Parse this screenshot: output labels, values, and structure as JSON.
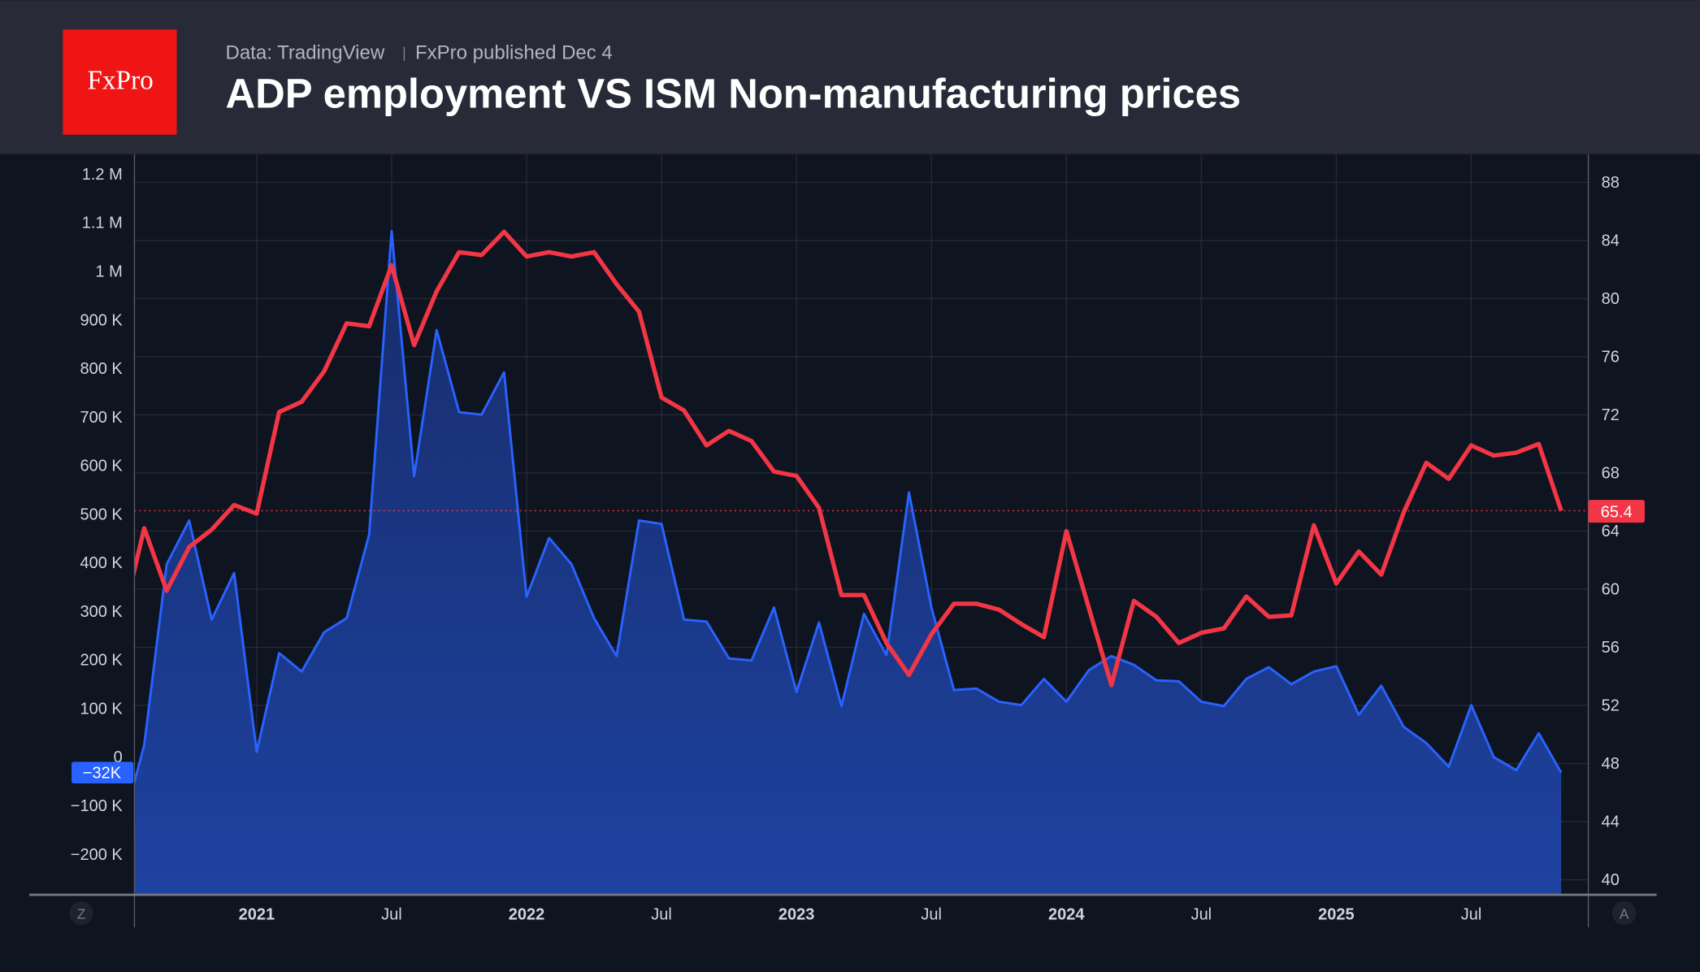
{
  "header": {
    "logo": "FxPro",
    "source": "Data: TradingView",
    "separator": "|",
    "published": "FxPro published Dec 4",
    "title": "ADP employment VS ISM Non-manufacturing prices"
  },
  "controls": {
    "left_button": "Z",
    "right_button": "A"
  },
  "colors": {
    "adp_line": "#2962ff",
    "ism_line": "#f23645",
    "logo_bg": "#f01414",
    "header_bg": "#282b37",
    "chart_bg": "#0e1420"
  },
  "chart_data": {
    "type": "line",
    "title": "ADP employment VS ISM Non-manufacturing prices",
    "x": [
      "2020-07",
      "2020-08",
      "2020-09",
      "2020-10",
      "2020-11",
      "2020-12",
      "2021-01",
      "2021-02",
      "2021-03",
      "2021-04",
      "2021-05",
      "2021-06",
      "2021-07",
      "2021-08",
      "2021-09",
      "2021-10",
      "2021-11",
      "2021-12",
      "2022-01",
      "2022-02",
      "2022-03",
      "2022-04",
      "2022-05",
      "2022-06",
      "2022-07",
      "2022-08",
      "2022-09",
      "2022-10",
      "2022-11",
      "2022-12",
      "2023-01",
      "2023-02",
      "2023-03",
      "2023-04",
      "2023-05",
      "2023-06",
      "2023-07",
      "2023-08",
      "2023-09",
      "2023-10",
      "2023-11",
      "2023-12",
      "2024-01",
      "2024-02",
      "2024-03",
      "2024-04",
      "2024-05",
      "2024-06",
      "2024-07",
      "2024-08",
      "2024-09",
      "2024-10",
      "2024-11",
      "2024-12",
      "2025-01",
      "2025-02",
      "2025-03",
      "2025-04",
      "2025-05",
      "2025-06",
      "2025-07",
      "2025-08",
      "2025-09",
      "2025-10",
      "2025-11"
    ],
    "series": [
      {
        "key": "adp",
        "axis": "left",
        "style": "area",
        "unit": "K",
        "values": [
          -150,
          25,
          397,
          487,
          283,
          379,
          11,
          214,
          176,
          257,
          286,
          458,
          1083,
          578,
          879,
          710,
          705,
          792,
          330,
          451,
          397,
          286,
          208,
          487,
          480,
          283,
          279,
          203,
          199,
          308,
          134,
          277,
          105,
          295,
          210,
          545,
          308,
          138,
          141,
          114,
          107,
          161,
          114,
          179,
          208,
          190,
          158,
          156,
          114,
          105,
          161,
          185,
          150,
          176,
          187,
          87,
          147,
          62,
          29,
          -20,
          107,
          0,
          -27,
          49,
          -32
        ]
      },
      {
        "key": "ism",
        "axis": "right",
        "style": "line",
        "values": [
          57.6,
          64.2,
          59.9,
          62.9,
          64.1,
          65.8,
          65.2,
          72.2,
          72.9,
          75.0,
          78.3,
          78.1,
          82.3,
          76.8,
          80.5,
          83.2,
          83.0,
          84.6,
          82.9,
          83.2,
          82.9,
          83.2,
          81.0,
          79.1,
          73.2,
          72.3,
          69.9,
          70.9,
          70.2,
          68.1,
          67.8,
          65.6,
          59.6,
          59.6,
          56.3,
          54.1,
          56.9,
          59.0,
          59.0,
          58.6,
          57.6,
          56.7,
          64.0,
          58.7,
          53.4,
          59.2,
          58.1,
          56.3,
          57.0,
          57.3,
          59.5,
          58.1,
          58.2,
          64.4,
          60.4,
          62.6,
          61.0,
          65.3,
          68.7,
          67.6,
          69.9,
          69.2,
          69.4,
          70.0,
          65.4
        ]
      }
    ],
    "left_axis": {
      "range": [
        -280,
        1220
      ],
      "unit": "K",
      "ticks": [
        {
          "v": 1200,
          "label": "1.2 M"
        },
        {
          "v": 1100,
          "label": "1.1 M"
        },
        {
          "v": 1000,
          "label": "1 M"
        },
        {
          "v": 900,
          "label": "900 K"
        },
        {
          "v": 800,
          "label": "800 K"
        },
        {
          "v": 700,
          "label": "700 K"
        },
        {
          "v": 600,
          "label": "600 K"
        },
        {
          "v": 500,
          "label": "500 K"
        },
        {
          "v": 400,
          "label": "400 K"
        },
        {
          "v": 300,
          "label": "300 K"
        },
        {
          "v": 200,
          "label": "200 K"
        },
        {
          "v": 100,
          "label": "100 K"
        },
        {
          "v": 0,
          "label": "0"
        },
        {
          "v": -100,
          "label": "−100 K"
        },
        {
          "v": -200,
          "label": "−200 K"
        }
      ]
    },
    "right_axis": {
      "range": [
        39,
        90
      ],
      "ticks": [
        88,
        84,
        80,
        76,
        72,
        68,
        64,
        60,
        56,
        52,
        48,
        44,
        40
      ]
    },
    "x_ticks": [
      {
        "date": "2021-01",
        "label": "2021",
        "major": true
      },
      {
        "date": "2021-07",
        "label": "Jul",
        "major": false
      },
      {
        "date": "2022-01",
        "label": "2022",
        "major": true
      },
      {
        "date": "2022-07",
        "label": "Jul",
        "major": false
      },
      {
        "date": "2023-01",
        "label": "2023",
        "major": true
      },
      {
        "date": "2023-07",
        "label": "Jul",
        "major": false
      },
      {
        "date": "2024-01",
        "label": "2024",
        "major": true
      },
      {
        "date": "2024-07",
        "label": "Jul",
        "major": false
      },
      {
        "date": "2025-01",
        "label": "2025",
        "major": true
      },
      {
        "date": "2025-07",
        "label": "Jul",
        "major": false
      }
    ],
    "last_value_labels": {
      "adp": "−32K",
      "ism": "65.4"
    },
    "grid": true
  }
}
